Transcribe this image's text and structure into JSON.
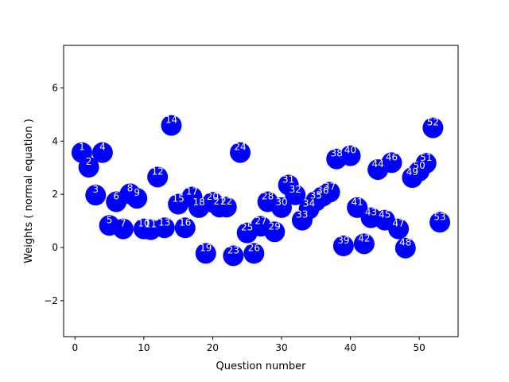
{
  "chart_data": {
    "type": "scatter",
    "xlabel": "Question number",
    "ylabel": "Weights ( normal equation )",
    "xlim": [
      -1.65,
      55.65
    ],
    "ylim": [
      -3.35,
      7.6
    ],
    "xticks": [
      0,
      10,
      20,
      30,
      40,
      50
    ],
    "yticks": [
      -2,
      0,
      2,
      4,
      6
    ],
    "grid": false,
    "marker_color": "#0000ff",
    "label_color": "#ffffff",
    "points": [
      {
        "x": 1,
        "y": 3.57,
        "label": "1"
      },
      {
        "x": 2,
        "y": 3.02,
        "label": "2"
      },
      {
        "x": 3,
        "y": 1.97,
        "label": "3"
      },
      {
        "x": 4,
        "y": 3.57,
        "label": "4"
      },
      {
        "x": 5,
        "y": 0.83,
        "label": "5"
      },
      {
        "x": 6,
        "y": 1.72,
        "label": "6"
      },
      {
        "x": 7,
        "y": 0.7,
        "label": "7"
      },
      {
        "x": 8,
        "y": 2.02,
        "label": "8"
      },
      {
        "x": 9,
        "y": 1.85,
        "label": "9"
      },
      {
        "x": 10,
        "y": 0.7,
        "label": "10"
      },
      {
        "x": 11,
        "y": 0.67,
        "label": "11"
      },
      {
        "x": 12,
        "y": 2.65,
        "label": "12"
      },
      {
        "x": 13,
        "y": 0.74,
        "label": "13"
      },
      {
        "x": 14,
        "y": 4.59,
        "label": "14"
      },
      {
        "x": 15,
        "y": 1.63,
        "label": "15"
      },
      {
        "x": 16,
        "y": 0.74,
        "label": "16"
      },
      {
        "x": 17,
        "y": 1.9,
        "label": "17"
      },
      {
        "x": 18,
        "y": 1.5,
        "label": "18"
      },
      {
        "x": 19,
        "y": -0.22,
        "label": "19"
      },
      {
        "x": 20,
        "y": 1.7,
        "label": "20"
      },
      {
        "x": 21,
        "y": 1.52,
        "label": "21"
      },
      {
        "x": 22,
        "y": 1.52,
        "label": "22"
      },
      {
        "x": 23,
        "y": -0.31,
        "label": "23"
      },
      {
        "x": 24,
        "y": 3.57,
        "label": "24"
      },
      {
        "x": 25,
        "y": 0.55,
        "label": "25"
      },
      {
        "x": 26,
        "y": -0.22,
        "label": "26"
      },
      {
        "x": 27,
        "y": 0.8,
        "label": "27"
      },
      {
        "x": 28,
        "y": 1.72,
        "label": "28"
      },
      {
        "x": 29,
        "y": 0.59,
        "label": "29"
      },
      {
        "x": 30,
        "y": 1.5,
        "label": "30"
      },
      {
        "x": 31,
        "y": 2.35,
        "label": "31"
      },
      {
        "x": 32,
        "y": 1.98,
        "label": "32"
      },
      {
        "x": 33,
        "y": 1.03,
        "label": "33"
      },
      {
        "x": 34,
        "y": 1.45,
        "label": "34"
      },
      {
        "x": 35,
        "y": 1.75,
        "label": "35"
      },
      {
        "x": 36,
        "y": 1.93,
        "label": "36"
      },
      {
        "x": 37,
        "y": 2.08,
        "label": "37"
      },
      {
        "x": 38,
        "y": 3.33,
        "label": "38"
      },
      {
        "x": 39,
        "y": 0.06,
        "label": "39"
      },
      {
        "x": 40,
        "y": 3.45,
        "label": "40"
      },
      {
        "x": 41,
        "y": 1.5,
        "label": "41"
      },
      {
        "x": 42,
        "y": 0.14,
        "label": "42"
      },
      {
        "x": 43,
        "y": 1.12,
        "label": "43"
      },
      {
        "x": 44,
        "y": 2.93,
        "label": "44"
      },
      {
        "x": 45,
        "y": 1.03,
        "label": "45"
      },
      {
        "x": 46,
        "y": 3.19,
        "label": "46"
      },
      {
        "x": 47,
        "y": 0.7,
        "label": "47"
      },
      {
        "x": 48,
        "y": -0.02,
        "label": "48"
      },
      {
        "x": 49,
        "y": 2.63,
        "label": "49"
      },
      {
        "x": 50,
        "y": 2.87,
        "label": "50"
      },
      {
        "x": 51,
        "y": 3.17,
        "label": "51"
      },
      {
        "x": 52,
        "y": 4.5,
        "label": "52"
      },
      {
        "x": 53,
        "y": 0.95,
        "label": "53"
      }
    ]
  }
}
